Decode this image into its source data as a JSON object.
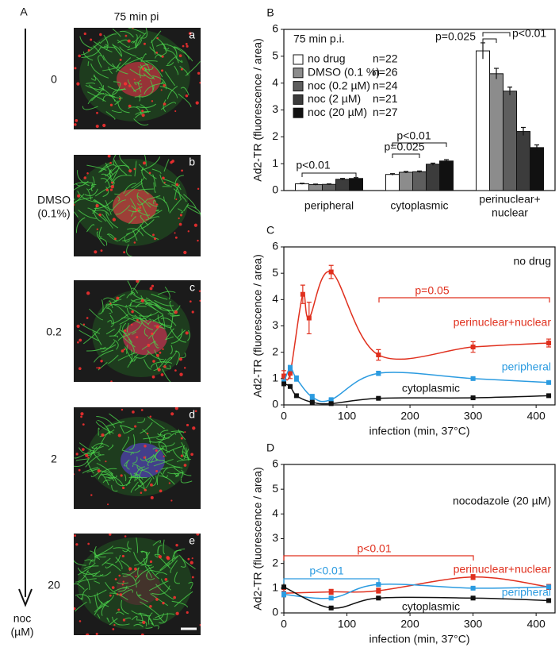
{
  "panel_a": {
    "label": "A",
    "title": "75 min pi",
    "rows": [
      {
        "label": "0",
        "tag": "a"
      },
      {
        "label": "DMSO\n(0.1%)",
        "tag": "b"
      },
      {
        "label": "0.2",
        "tag": "c"
      },
      {
        "label": "2",
        "tag": "d"
      },
      {
        "label": "20",
        "tag": "e"
      }
    ],
    "axis_label": "noc\n(µM)"
  },
  "chart_data": [
    {
      "panel": "B",
      "type": "bar",
      "subtitle": "75 min p.i.",
      "y_label": "Ad2-TR (fluorescence / area)",
      "categories": [
        "peripheral",
        "cytoplasmic",
        "perinuclear+\nnuclear"
      ],
      "series": [
        {
          "name": "no drug",
          "n": "n=22",
          "color": "#ffffff",
          "values": [
            0.25,
            0.6,
            5.2
          ],
          "errors": [
            0.02,
            0.03,
            0.3
          ]
        },
        {
          "name": "DMSO (0.1 %)",
          "n": "n=26",
          "color": "#8c8c8c",
          "values": [
            0.22,
            0.68,
            4.35
          ],
          "errors": [
            0.02,
            0.03,
            0.2
          ]
        },
        {
          "name": "noc (0.2 µM)",
          "n": "n=24",
          "color": "#5e5e5e",
          "values": [
            0.23,
            0.7,
            3.7
          ],
          "errors": [
            0.02,
            0.03,
            0.15
          ]
        },
        {
          "name": "noc (2 µM)",
          "n": "n=21",
          "color": "#3c3c3c",
          "values": [
            0.42,
            0.98,
            2.2
          ],
          "errors": [
            0.03,
            0.04,
            0.15
          ]
        },
        {
          "name": "noc (20 µM)",
          "n": "n=27",
          "color": "#111111",
          "values": [
            0.45,
            1.1,
            1.6
          ],
          "errors": [
            0.03,
            0.05,
            0.1
          ]
        }
      ],
      "ylim": [
        0,
        6
      ],
      "yticks": [
        0,
        1,
        2,
        3,
        4,
        5,
        6
      ],
      "annotations": [
        "p<0.01",
        "p=0.025",
        "p<0.01",
        "p=0.025",
        "p<0.01"
      ]
    },
    {
      "panel": "C",
      "type": "line",
      "y_label": "Ad2-TR (fluorescence / area)",
      "x_label": "infection (min, 37°C)",
      "series": [
        {
          "name": "perinuclear+nuclear",
          "color": "#e0301e",
          "x": [
            0,
            10,
            30,
            40,
            75,
            150,
            300,
            420
          ],
          "values": [
            1.1,
            1.2,
            4.2,
            3.3,
            5.05,
            1.9,
            2.2,
            2.35
          ],
          "errors": [
            0.2,
            0.2,
            0.35,
            0.6,
            0.25,
            0.2,
            0.2,
            0.15
          ]
        },
        {
          "name": "peripheral",
          "color": "#2b9be0",
          "x": [
            0,
            10,
            20,
            45,
            75,
            150,
            300,
            420
          ],
          "values": [
            0.85,
            1.4,
            1.0,
            0.3,
            0.2,
            1.2,
            1.0,
            0.85
          ],
          "errors": [
            0.1,
            0.1,
            0.1,
            0.1,
            0.05,
            0.08,
            0.05,
            0.05
          ]
        },
        {
          "name": "cytoplasmic",
          "color": "#111111",
          "x": [
            0,
            10,
            20,
            45,
            75,
            150,
            300,
            420
          ],
          "values": [
            0.8,
            0.7,
            0.35,
            0.1,
            0.05,
            0.25,
            0.27,
            0.35
          ],
          "errors": [
            0.05,
            0.05,
            0.05,
            0.03,
            0.03,
            0.03,
            0.03,
            0.03
          ]
        }
      ],
      "xlim": [
        0,
        430
      ],
      "xticks": [
        0,
        100,
        200,
        300,
        400
      ],
      "ylim": [
        0,
        6
      ],
      "yticks": [
        0,
        1,
        2,
        3,
        4,
        5,
        6
      ],
      "annotations": [
        "no drug",
        "p=0.05"
      ]
    },
    {
      "panel": "D",
      "type": "line",
      "y_label": "Ad2-TR (fluorescence / area)",
      "x_label": "infection (min, 37°C)",
      "series": [
        {
          "name": "perinuclear+nuclear",
          "color": "#e0301e",
          "x": [
            0,
            75,
            150,
            300,
            420
          ],
          "values": [
            0.8,
            0.85,
            0.9,
            1.45,
            1.05
          ],
          "errors": [
            0.15,
            0.1,
            0.1,
            0.1,
            0.1
          ]
        },
        {
          "name": "peripheral",
          "color": "#2b9be0",
          "x": [
            0,
            75,
            150,
            300,
            420
          ],
          "values": [
            0.75,
            0.6,
            1.15,
            1.0,
            1.05
          ],
          "errors": [
            0.1,
            0.05,
            0.05,
            0.05,
            0.05
          ]
        },
        {
          "name": "cytoplasmic",
          "color": "#111111",
          "x": [
            0,
            75,
            150,
            300,
            420
          ],
          "values": [
            1.05,
            0.2,
            0.6,
            0.6,
            0.5
          ],
          "errors": [
            0.05,
            0.05,
            0.05,
            0.05,
            0.05
          ]
        }
      ],
      "xlim": [
        0,
        430
      ],
      "xticks": [
        0,
        100,
        200,
        300,
        400
      ],
      "ylim": [
        0,
        6
      ],
      "yticks": [
        0,
        1,
        2,
        3,
        4,
        5,
        6
      ],
      "annotations": [
        "nocodazole (20 µM)",
        "p<0.01",
        "p<0.01"
      ]
    }
  ]
}
